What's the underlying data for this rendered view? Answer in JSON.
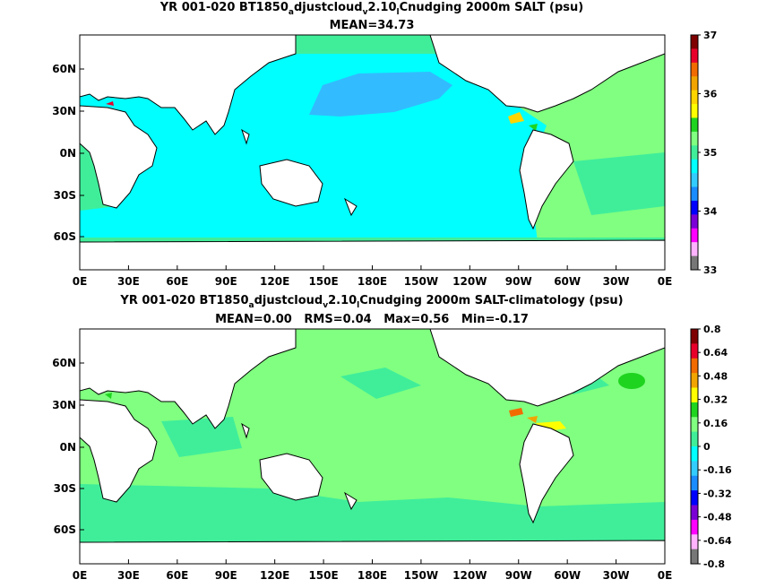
{
  "chart_data": [
    {
      "type": "heatmap",
      "title_line1": {
        "prefix": "YR 001-020 BT1850",
        "sub_a": "a",
        "mid": "djustcloud",
        "sub_v": "v",
        "mid2": "2.10",
        "sub_l": "l",
        "suffix": "Cnudging 2000m SALT (psu)"
      },
      "title_line2": "MEAN=34.73",
      "x_ticks": [
        "0E",
        "30E",
        "60E",
        "90E",
        "120E",
        "150E",
        "180E",
        "150W",
        "120W",
        "90W",
        "60W",
        "30W",
        "0E"
      ],
      "y_ticks": [
        "60N",
        "30N",
        "0N",
        "30S",
        "60S"
      ],
      "colorbar_ticks": [
        "37",
        "36",
        "35",
        "34",
        "33"
      ],
      "colorbar_colors": [
        "#7f0000",
        "#e8002a",
        "#f26b00",
        "#f2a500",
        "#ffd500",
        "#ffff00",
        "#1fd41f",
        "#80ff80",
        "#40ee9a",
        "#00ffff",
        "#33ccff",
        "#1a8cff",
        "#0000ff",
        "#7a00d6",
        "#ff00ff",
        "#ffb3ff",
        "#777777"
      ],
      "regions": {
        "ocean_main": "#00ffff",
        "ocean_subpolar": "#33bbff",
        "atlantic": "#80ff80",
        "atlantic_tropics": "#40ee9a"
      }
    },
    {
      "type": "heatmap",
      "title_line1": {
        "prefix": "YR 001-020 BT1850",
        "sub_a": "a",
        "mid": "djustcloud",
        "sub_v": "v",
        "mid2": "2.10",
        "sub_l": "l",
        "suffix": "Cnudging 2000m SALT-climatology (psu)"
      },
      "title_line2": "MEAN=0.00   RMS=0.04   Max=0.56   Min=-0.17",
      "x_ticks": [
        "0E",
        "30E",
        "60E",
        "90E",
        "120E",
        "150E",
        "180E",
        "150W",
        "120W",
        "90W",
        "60W",
        "30W",
        "0E"
      ],
      "y_ticks": [
        "60N",
        "30N",
        "0N",
        "30S",
        "60S"
      ],
      "colorbar_ticks": [
        "0.8",
        "0.64",
        "0.48",
        "0.32",
        "0.16",
        "0",
        "-0.16",
        "-0.32",
        "-0.48",
        "-0.64",
        "-0.8"
      ],
      "colorbar_colors": [
        "#7f0000",
        "#e8002a",
        "#f26b00",
        "#f2a500",
        "#ffff00",
        "#1fd41f",
        "#80ff80",
        "#40ee9a",
        "#00ffff",
        "#33ccff",
        "#1a8cff",
        "#0000ff",
        "#7a00d6",
        "#ff00ff",
        "#ffb3ff",
        "#777777"
      ],
      "regions": {
        "ocean_main": "#80ff80",
        "ocean_patches": "#40ee9a",
        "positive_anomaly": "#ffff00"
      }
    }
  ]
}
